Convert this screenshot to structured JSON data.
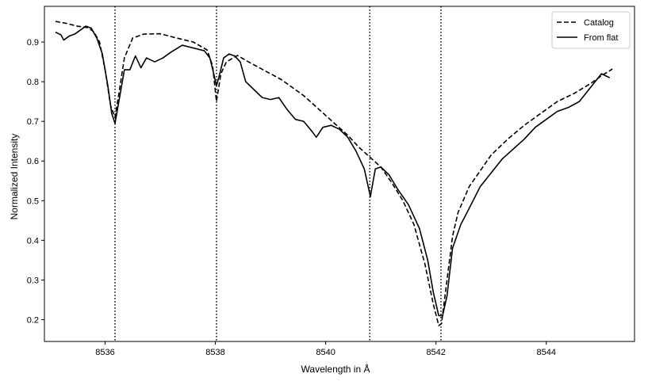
{
  "chart_data": {
    "type": "line",
    "title": "",
    "xlabel": "Wavelength in Å",
    "ylabel": "Normalized Intensity",
    "xlim": [
      8534.9,
      8545.6
    ],
    "ylim": [
      0.145,
      0.99
    ],
    "xticks": [
      8536,
      8538,
      8540,
      8542,
      8544
    ],
    "yticks": [
      0.2,
      0.3,
      0.4,
      0.5,
      0.6,
      0.7,
      0.8,
      0.9
    ],
    "grid": false,
    "legend_position": "top-right",
    "vlines": [
      8536.18,
      8538.02,
      8540.8,
      8542.09
    ],
    "series": [
      {
        "name": "Catalog",
        "style": "dashed",
        "color": "#000000",
        "x": [
          8535.1,
          8535.3,
          8535.5,
          8535.7,
          8535.8,
          8535.9,
          8536.0,
          8536.1,
          8536.18,
          8536.25,
          8536.35,
          8536.5,
          8536.7,
          8537.0,
          8537.3,
          8537.6,
          8537.85,
          8537.95,
          8538.02,
          8538.1,
          8538.2,
          8538.4,
          8538.6,
          8538.8,
          8539.0,
          8539.2,
          8539.4,
          8539.6,
          8539.8,
          8540.0,
          8540.2,
          8540.4,
          8540.6,
          8540.8,
          8541.0,
          8541.2,
          8541.4,
          8541.6,
          8541.8,
          8541.95,
          8542.05,
          8542.1,
          8542.2,
          8542.3,
          8542.4,
          8542.6,
          8542.8,
          8543.0,
          8543.3,
          8543.6,
          8543.9,
          8544.2,
          8544.5,
          8544.8,
          8545.0,
          8545.2
        ],
        "y": [
          0.952,
          0.947,
          0.94,
          0.936,
          0.925,
          0.9,
          0.83,
          0.74,
          0.71,
          0.77,
          0.86,
          0.91,
          0.92,
          0.921,
          0.91,
          0.9,
          0.88,
          0.84,
          0.75,
          0.82,
          0.85,
          0.866,
          0.85,
          0.835,
          0.82,
          0.805,
          0.785,
          0.765,
          0.74,
          0.715,
          0.69,
          0.665,
          0.635,
          0.61,
          0.585,
          0.545,
          0.5,
          0.44,
          0.34,
          0.24,
          0.185,
          0.19,
          0.3,
          0.41,
          0.47,
          0.535,
          0.575,
          0.615,
          0.655,
          0.69,
          0.72,
          0.75,
          0.77,
          0.795,
          0.815,
          0.832
        ]
      },
      {
        "name": "From flat",
        "style": "solid",
        "color": "#000000",
        "x": [
          8535.1,
          8535.2,
          8535.25,
          8535.35,
          8535.45,
          8535.55,
          8535.65,
          8535.75,
          8535.85,
          8535.95,
          8536.05,
          8536.12,
          8536.18,
          8536.25,
          8536.35,
          8536.45,
          8536.55,
          8536.65,
          8536.75,
          8536.9,
          8537.05,
          8537.2,
          8537.4,
          8537.6,
          8537.8,
          8537.9,
          8537.97,
          8538.02,
          8538.08,
          8538.15,
          8538.25,
          8538.35,
          8538.45,
          8538.55,
          8538.7,
          8538.85,
          8539.0,
          8539.15,
          8539.3,
          8539.45,
          8539.6,
          8539.75,
          8539.83,
          8539.95,
          8540.1,
          8540.25,
          8540.4,
          8540.55,
          8540.7,
          8540.78,
          8540.81,
          8540.9,
          8541.0,
          8541.15,
          8541.3,
          8541.5,
          8541.7,
          8541.85,
          8541.95,
          8542.05,
          8542.12,
          8542.2,
          8542.3,
          8542.45,
          8542.6,
          8542.8,
          8543.0,
          8543.2,
          8543.4,
          8543.6,
          8543.8,
          8544.0,
          8544.2,
          8544.4,
          8544.6,
          8544.8,
          8545.0,
          8545.15
        ],
        "y": [
          0.925,
          0.918,
          0.905,
          0.915,
          0.92,
          0.93,
          0.94,
          0.935,
          0.91,
          0.87,
          0.79,
          0.72,
          0.695,
          0.75,
          0.83,
          0.83,
          0.865,
          0.835,
          0.86,
          0.85,
          0.86,
          0.875,
          0.892,
          0.885,
          0.878,
          0.86,
          0.82,
          0.79,
          0.82,
          0.86,
          0.87,
          0.865,
          0.85,
          0.8,
          0.78,
          0.76,
          0.755,
          0.76,
          0.73,
          0.705,
          0.7,
          0.675,
          0.66,
          0.685,
          0.69,
          0.68,
          0.66,
          0.625,
          0.58,
          0.53,
          0.51,
          0.58,
          0.585,
          0.565,
          0.53,
          0.49,
          0.43,
          0.35,
          0.27,
          0.21,
          0.21,
          0.26,
          0.38,
          0.44,
          0.48,
          0.535,
          0.57,
          0.605,
          0.63,
          0.655,
          0.685,
          0.705,
          0.725,
          0.735,
          0.75,
          0.785,
          0.82,
          0.81
        ]
      }
    ]
  }
}
